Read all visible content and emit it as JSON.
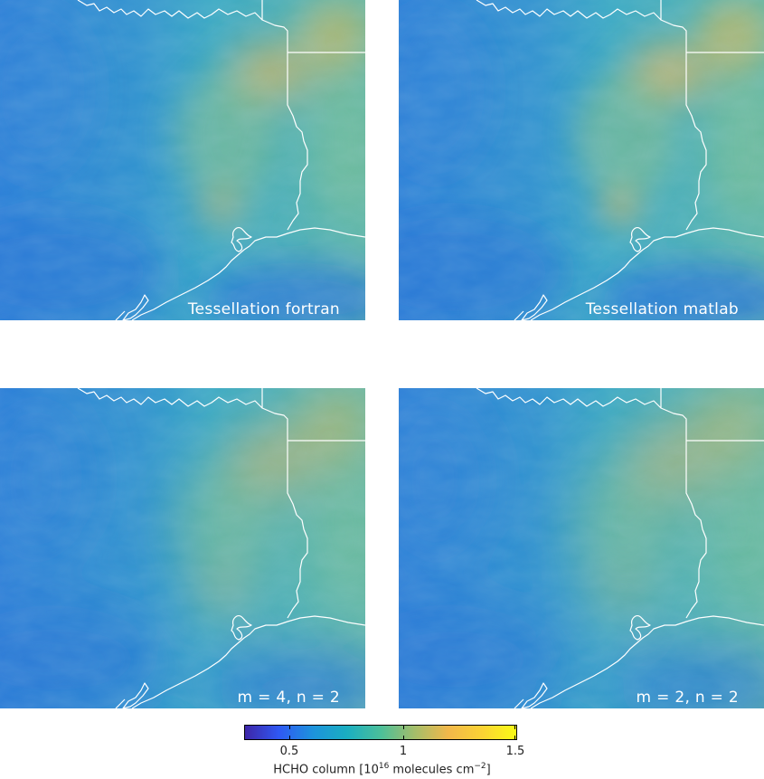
{
  "panels": [
    {
      "label": "Tessellation fortran",
      "variant": "fortran"
    },
    {
      "label": "Tessellation matlab",
      "variant": "matlab"
    },
    {
      "label": "m = 4, n = 2",
      "variant": "m4n2"
    },
    {
      "label": "m = 2, n = 2",
      "variant": "m2n2"
    }
  ],
  "colorbar": {
    "ticks": [
      "0.5",
      "1",
      "1.5"
    ],
    "label_prefix": "HCHO column [10",
    "label_exp": "16",
    "label_mid": " molecules cm",
    "label_exp2": "−2",
    "label_suffix": "]",
    "colors": [
      "#3e26a8",
      "#2f58f3",
      "#1d93dc",
      "#1aaec1",
      "#4bbf9a",
      "#a4be6a",
      "#f2b84a",
      "#fbd334",
      "#f9fb15"
    ]
  },
  "colors": {
    "low": "#2a7ed8",
    "mid": "#39a9c4",
    "high": "#e2b55a",
    "border": "#ffffff"
  }
}
